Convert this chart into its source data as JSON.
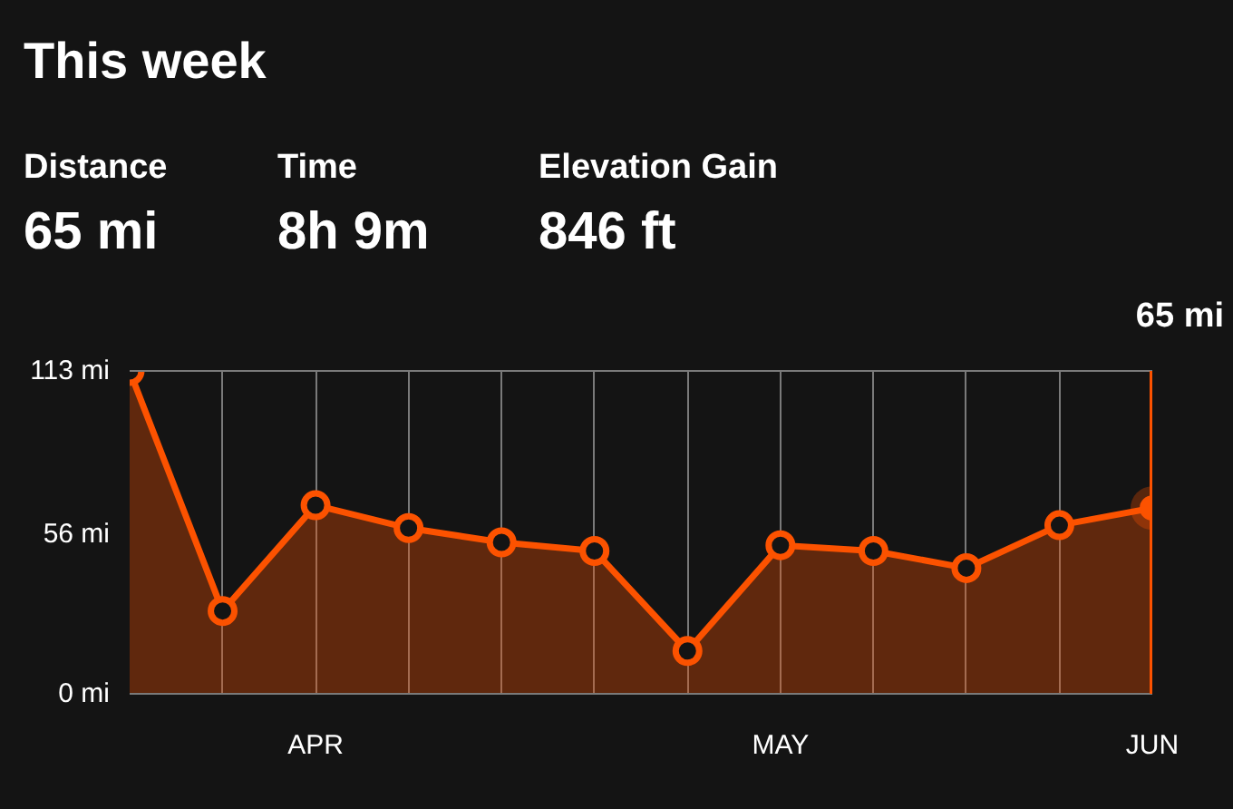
{
  "chart_data": {
    "type": "area",
    "title": "This week",
    "annotations": [
      "Distance",
      "65 mi",
      "Time",
      "8h 9m",
      "Elevation Gain",
      "846 ft",
      "65 mi"
    ],
    "categories": [
      null,
      null,
      "APR",
      null,
      null,
      null,
      null,
      "MAY",
      null,
      null,
      null,
      "JUN"
    ],
    "series": [
      {
        "color": "#fc5200",
        "values": [
          113,
          29,
          66,
          58,
          53,
          50,
          15,
          52,
          50,
          44,
          59,
          65
        ]
      }
    ],
    "ylim": [
      0,
      113
    ],
    "yticks": [
      {
        "value": 0,
        "label": "0 mi"
      },
      {
        "value": 56,
        "label": "56 mi"
      },
      {
        "value": 113,
        "label": "113 mi"
      }
    ],
    "grid": "x",
    "marker": "circle",
    "line_style": "solid",
    "ref_lines": [
      {
        "axis": "x",
        "value": "JUN",
        "color": "#fc5200"
      }
    ]
  }
}
